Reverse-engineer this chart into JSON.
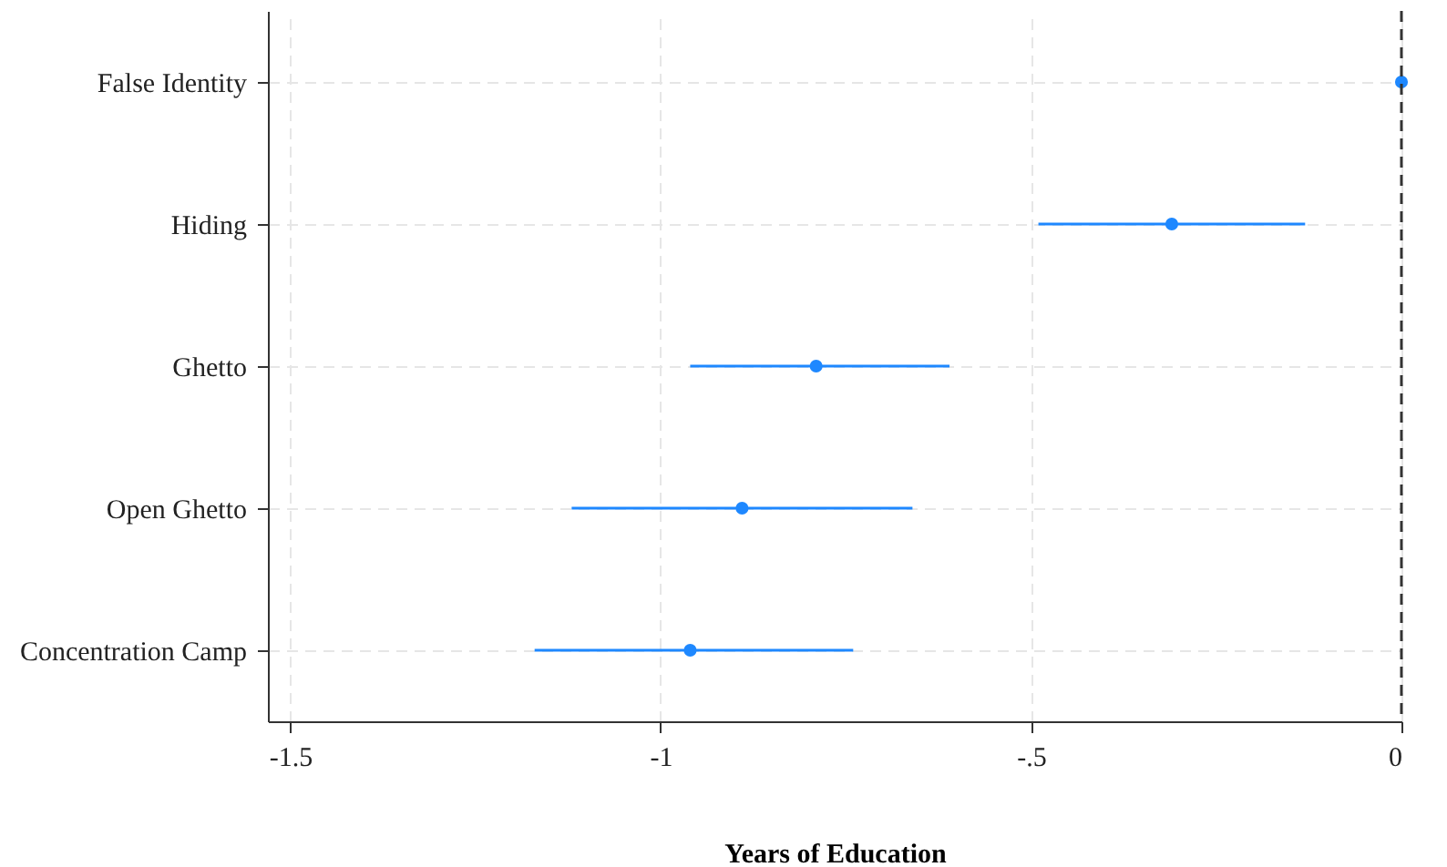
{
  "chart_data": {
    "type": "scatter",
    "orientation": "horizontal",
    "xlabel": "Years of Education",
    "categories": [
      "False Identity",
      "Hiding",
      "Ghetto",
      "Open Ghetto",
      "Concentration Camp"
    ],
    "series": [
      {
        "color": "#1e88ff",
        "values": [
          0,
          -0.31,
          -0.79,
          -0.89,
          -0.96
        ],
        "errors": [
          null,
          [
            -0.49,
            -0.13
          ],
          [
            -0.96,
            -0.61
          ],
          [
            -1.12,
            -0.66
          ],
          [
            -1.17,
            -0.74
          ]
        ]
      }
    ],
    "xlim": [
      -1.53,
      0
    ],
    "xticks": [
      -1.5,
      -1,
      {
        "value": -0.5,
        "label": "-.5"
      },
      0
    ],
    "ref_lines": [
      {
        "axis": "x",
        "value": 0,
        "color": "#333333",
        "line_style": "dashed"
      }
    ],
    "grid": true,
    "marker": "circle"
  }
}
